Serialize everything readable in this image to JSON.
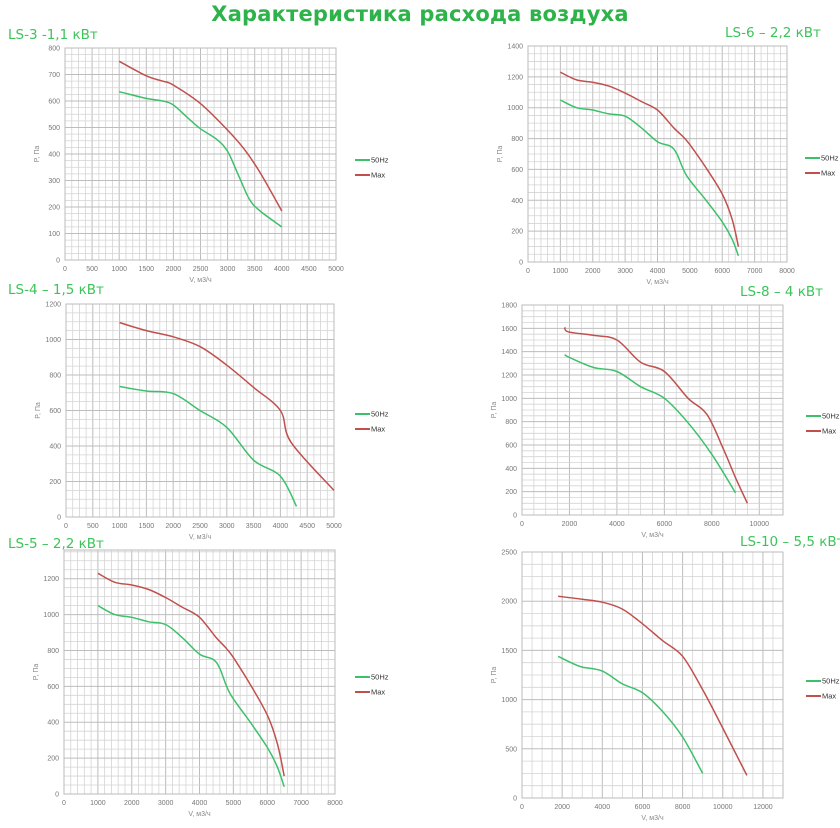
{
  "title": "Характеристика расхода воздуха",
  "colors": {
    "title": "#2db34a",
    "series_50hz": "#3cc06a",
    "series_max": "#c0504d",
    "grid": "#c8c8c8"
  },
  "chart_data": [
    {
      "type": "line",
      "title": "LS-3 -1,1 кВт",
      "xlabel": "V, м3/ч",
      "ylabel": "P, Па",
      "xlim": [
        0,
        5000
      ],
      "ylim": [
        0,
        800
      ],
      "grid": true,
      "legend": "right",
      "xticks": [
        0,
        500,
        1000,
        1500,
        2000,
        2500,
        3000,
        3500,
        4000,
        4500,
        5000
      ],
      "yticks": [
        0,
        100,
        200,
        300,
        400,
        500,
        600,
        700,
        800
      ],
      "series": [
        {
          "name": "50Hz",
          "color": "#3cc06a",
          "x": [
            1000,
            1500,
            1800,
            2000,
            2300,
            2500,
            2800,
            3000,
            3200,
            3400,
            3600,
            4000
          ],
          "y": [
            635,
            610,
            600,
            585,
            530,
            495,
            455,
            410,
            320,
            230,
            185,
            125
          ]
        },
        {
          "name": "Max",
          "color": "#c0504d",
          "x": [
            1000,
            1500,
            1800,
            2000,
            2500,
            3000,
            3300,
            3600,
            4000
          ],
          "y": [
            750,
            695,
            675,
            660,
            590,
            490,
            420,
            330,
            185
          ]
        }
      ]
    },
    {
      "type": "line",
      "title": "LS-6 – 2,2 кВт",
      "xlabel": "V, м3/ч",
      "ylabel": "P, Па",
      "xlim": [
        0,
        8000
      ],
      "ylim": [
        0,
        1400
      ],
      "grid": true,
      "legend": "right",
      "xticks": [
        0,
        1000,
        2000,
        3000,
        4000,
        5000,
        6000,
        7000,
        8000
      ],
      "yticks": [
        0,
        200,
        400,
        600,
        800,
        1000,
        1200,
        1400
      ],
      "series": [
        {
          "name": "50Hz",
          "color": "#3cc06a",
          "x": [
            1000,
            1500,
            2000,
            2500,
            3000,
            3500,
            4000,
            4400,
            4600,
            4900,
            5500,
            6000,
            6300,
            6500
          ],
          "y": [
            1050,
            1000,
            985,
            960,
            945,
            870,
            780,
            750,
            700,
            560,
            400,
            260,
            150,
            40
          ]
        },
        {
          "name": "Max",
          "color": "#c0504d",
          "x": [
            1000,
            1500,
            2000,
            2500,
            3000,
            3500,
            4000,
            4500,
            4800,
            5000,
            5500,
            6000,
            6300,
            6500
          ],
          "y": [
            1230,
            1180,
            1165,
            1140,
            1095,
            1040,
            985,
            870,
            810,
            760,
            610,
            440,
            280,
            100
          ]
        }
      ]
    },
    {
      "type": "line",
      "title": "LS-4 – 1,5 кВт",
      "xlabel": "V, м3/ч",
      "ylabel": "P, Па",
      "xlim": [
        0,
        5000
      ],
      "ylim": [
        0,
        1200
      ],
      "grid": true,
      "legend": "right",
      "xticks": [
        0,
        500,
        1000,
        1500,
        2000,
        2500,
        3000,
        3500,
        4000,
        4500,
        5000
      ],
      "yticks": [
        0,
        200,
        400,
        600,
        800,
        1000,
        1200
      ],
      "series": [
        {
          "name": "50Hz",
          "color": "#3cc06a",
          "x": [
            1000,
            1500,
            2000,
            2500,
            3000,
            3500,
            4000,
            4300
          ],
          "y": [
            735,
            710,
            695,
            600,
            505,
            320,
            230,
            60
          ]
        },
        {
          "name": "Max",
          "color": "#c0504d",
          "x": [
            1000,
            1500,
            2000,
            2500,
            3000,
            3500,
            4000,
            4200,
            5000
          ],
          "y": [
            1095,
            1050,
            1015,
            960,
            855,
            730,
            600,
            420,
            150
          ]
        }
      ]
    },
    {
      "type": "line",
      "title": "LS-8 – 4 кВт",
      "xlabel": "V, м3/ч",
      "ylabel": "P, Па",
      "xlim": [
        0,
        11000
      ],
      "ylim": [
        0,
        1800
      ],
      "grid": true,
      "legend": "right",
      "xticks": [
        0,
        2000,
        4000,
        6000,
        8000,
        10000
      ],
      "yticks": [
        0,
        200,
        400,
        600,
        800,
        1000,
        1200,
        1400,
        1600,
        1800
      ],
      "series": [
        {
          "name": "50Hz",
          "color": "#3cc06a",
          "x": [
            1800,
            2000,
            3000,
            4000,
            5000,
            6000,
            7000,
            8000,
            9000
          ],
          "y": [
            1375,
            1350,
            1265,
            1230,
            1100,
            1000,
            790,
            520,
            190
          ]
        },
        {
          "name": "Max",
          "color": "#c0504d",
          "x": [
            1800,
            1950,
            3000,
            4000,
            5000,
            6000,
            7000,
            7800,
            8500,
            9000,
            9500
          ],
          "y": [
            1610,
            1570,
            1540,
            1500,
            1310,
            1230,
            1000,
            860,
            560,
            320,
            100
          ]
        }
      ]
    },
    {
      "type": "line",
      "title": "LS-5 – 2,2 кВт",
      "xlabel": "V, м3/ч",
      "ylabel": "P, Па",
      "xlim": [
        0,
        8000
      ],
      "ylim": [
        0,
        1360
      ],
      "grid": true,
      "legend": "right",
      "xticks": [
        0,
        1000,
        2000,
        3000,
        4000,
        5000,
        6000,
        7000,
        8000
      ],
      "yticks": [
        0,
        200,
        400,
        600,
        800,
        1000,
        1200
      ],
      "series": [
        {
          "name": "50Hz",
          "color": "#3cc06a",
          "x": [
            1000,
            1500,
            2000,
            2500,
            3000,
            3500,
            4000,
            4400,
            4600,
            4900,
            5500,
            6000,
            6300,
            6500
          ],
          "y": [
            1050,
            1000,
            985,
            960,
            945,
            870,
            780,
            750,
            700,
            560,
            400,
            260,
            150,
            40
          ]
        },
        {
          "name": "Max",
          "color": "#c0504d",
          "x": [
            1000,
            1500,
            2000,
            2500,
            3000,
            3500,
            4000,
            4500,
            4800,
            5000,
            5500,
            6000,
            6300,
            6500
          ],
          "y": [
            1230,
            1180,
            1165,
            1140,
            1095,
            1040,
            985,
            870,
            810,
            760,
            610,
            440,
            280,
            100
          ]
        }
      ]
    },
    {
      "type": "line",
      "title": "LS-10 – 5,5 кВт",
      "xlabel": "V, м3/ч",
      "ylabel": "P, Па",
      "xlim": [
        0,
        13000
      ],
      "ylim": [
        0,
        2500
      ],
      "grid": true,
      "legend": "right",
      "xticks": [
        0,
        2000,
        4000,
        6000,
        8000,
        10000,
        12000
      ],
      "yticks": [
        0,
        500,
        1000,
        1500,
        2000,
        2500
      ],
      "series": [
        {
          "name": "50Hz",
          "color": "#3cc06a",
          "x": [
            1800,
            2500,
            3000,
            4000,
            5000,
            6000,
            7000,
            8000,
            9000
          ],
          "y": [
            1440,
            1370,
            1330,
            1290,
            1160,
            1070,
            880,
            620,
            250
          ]
        },
        {
          "name": "Max",
          "color": "#c0504d",
          "x": [
            1800,
            3000,
            4000,
            5000,
            6000,
            7000,
            8000,
            9000,
            10000,
            11200
          ],
          "y": [
            2050,
            2020,
            1990,
            1920,
            1770,
            1600,
            1440,
            1100,
            710,
            230
          ]
        }
      ]
    }
  ]
}
